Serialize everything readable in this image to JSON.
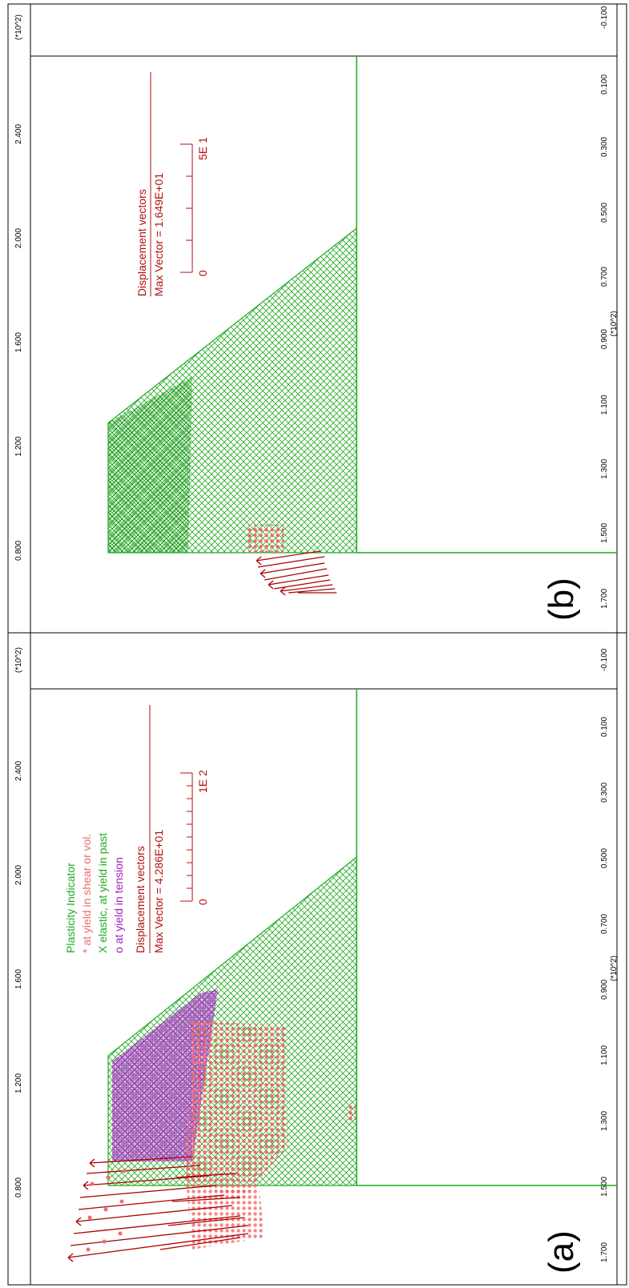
{
  "scale_units": "(*10^2)",
  "panels": [
    {
      "id": "a",
      "label": "(a)",
      "legend": {
        "plasticity_title": "Plasticity Indicator",
        "shear": "* at yield in shear or vol.",
        "elastic": "X elastic, at yield in past",
        "tension": "o at yield in tension",
        "displacement_title": "Displacement vectors",
        "max_vector": "Max Vector =    4.286E+01",
        "scale_start": "0",
        "scale_end": "1E 2"
      }
    },
    {
      "id": "b",
      "label": "(b)",
      "legend": {
        "displacement_title": "Displacement vectors",
        "max_vector": "Max Vector =    1.649E+01",
        "scale_start": "0",
        "scale_end": "5E 1"
      }
    }
  ],
  "axis_along": {
    "label": "(*10^2)",
    "ticks": [
      "-0.100",
      "0.100",
      "0.300",
      "0.500",
      "0.700",
      "0.900",
      "1.100",
      "1.300",
      "1.500",
      "1.700"
    ]
  },
  "axis_across": {
    "label": "(*10^2)",
    "ticks": [
      "2.400",
      "2.000",
      "1.600",
      "1.200",
      "0.800"
    ]
  },
  "colors": {
    "mesh": "#22aa22",
    "shear_yield": "#f06a6a",
    "tension_yield": "#a020c0",
    "vectors": "#aa0000",
    "legend_plasticity": "#22aa22",
    "legend_tension": "#a020c0",
    "legend_displacement": "#b01010"
  }
}
